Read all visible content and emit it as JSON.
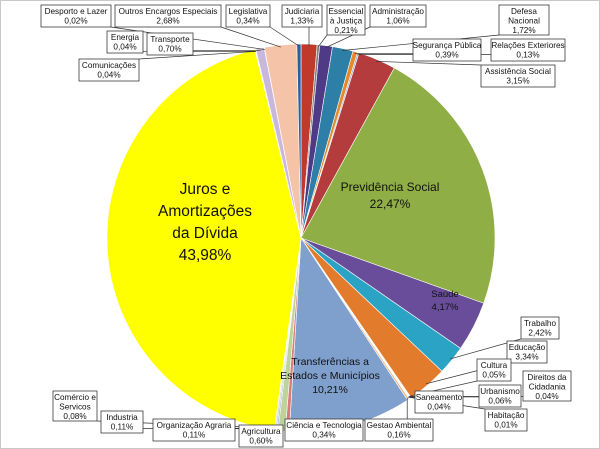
{
  "chart_data": {
    "type": "pie",
    "title": "",
    "slices": [
      {
        "label": "Judiciaria",
        "value": 1.33,
        "color": "#c0392b"
      },
      {
        "label": "Essencial à Justiça",
        "value": 0.21,
        "color": "#7f7f7f"
      },
      {
        "label": "Administração",
        "value": 1.06,
        "color": "#4f3a86"
      },
      {
        "label": "Defesa Nacional",
        "value": 1.72,
        "color": "#2e7fa8"
      },
      {
        "label": "Segurança Pública",
        "value": 0.39,
        "color": "#e38b2c"
      },
      {
        "label": "Relações Exteriores",
        "value": 0.13,
        "color": "#8ea9d8"
      },
      {
        "label": "Assistência Social",
        "value": 3.15,
        "color": "#b43c3c"
      },
      {
        "label": "Previdência Social",
        "value": 22.47,
        "color": "#8fae46"
      },
      {
        "label": "Saúde",
        "value": 4.17,
        "color": "#6a4d9a"
      },
      {
        "label": "Trabalho",
        "value": 2.42,
        "color": "#2aa3c4"
      },
      {
        "label": "Educação",
        "value": 3.34,
        "color": "#e27c2c"
      },
      {
        "label": "Cultura",
        "value": 0.05,
        "color": "#9aaed6"
      },
      {
        "label": "Direitos da Cidadania",
        "value": 0.04,
        "color": "#c7635f"
      },
      {
        "label": "Urbanismo",
        "value": 0.06,
        "color": "#b6cc85"
      },
      {
        "label": "Habitação",
        "value": 0.01,
        "color": "#8c74b4"
      },
      {
        "label": "Saneamento",
        "value": 0.04,
        "color": "#73c3d6"
      },
      {
        "label": "Gestao Ambiental",
        "value": 0.16,
        "color": "#f0b27a"
      },
      {
        "label": "Transferências a Estados e Municípios",
        "value": 10.21,
        "color": "#7f9fcd"
      },
      {
        "label": "Ciência e Tecnologia",
        "value": 0.34,
        "color": "#d97c7a"
      },
      {
        "label": "Agricultura",
        "value": 0.6,
        "color": "#bdd39a"
      },
      {
        "label": "Organização Agraria",
        "value": 0.11,
        "color": "#a897c7"
      },
      {
        "label": "Industria",
        "value": 0.11,
        "color": "#8ccfde"
      },
      {
        "label": "Comércio e Servicos",
        "value": 0.08,
        "color": "#f4c08e"
      },
      {
        "label": "Juros e Amortizações da Dívida",
        "value": 43.98,
        "color": "#ffff00"
      },
      {
        "label": "Comunicações",
        "value": 0.04,
        "color": "#c0ccec"
      },
      {
        "label": "Energia",
        "value": 0.04,
        "color": "#e7b3b1"
      },
      {
        "label": "Transporte",
        "value": 0.7,
        "color": "#c9b8dc"
      },
      {
        "label": "Desporto e Lazer",
        "value": 0.02,
        "color": "#e9dca0"
      },
      {
        "label": "Outros Encargos Especiais",
        "value": 2.68,
        "color": "#f5c3a8"
      },
      {
        "label": "Legislativa",
        "value": 0.34,
        "color": "#2a5fa0"
      }
    ],
    "value_labels": [
      "1,33%",
      "0,21%",
      "1,06%",
      "1,72%",
      "0,39%",
      "0,13%",
      "3,15%",
      "22,47%",
      "4,17%",
      "2,42%",
      "3,34%",
      "0,05%",
      "0,04%",
      "0,06%",
      "0,01%",
      "0,04%",
      "0,16%",
      "10,21%",
      "0,34%",
      "0,60%",
      "0,11%",
      "0,11%",
      "0,08%",
      "43,98%",
      "0,04%",
      "0,04%",
      "0,70%",
      "0,02%",
      "2,68%",
      "0,34%"
    ]
  }
}
